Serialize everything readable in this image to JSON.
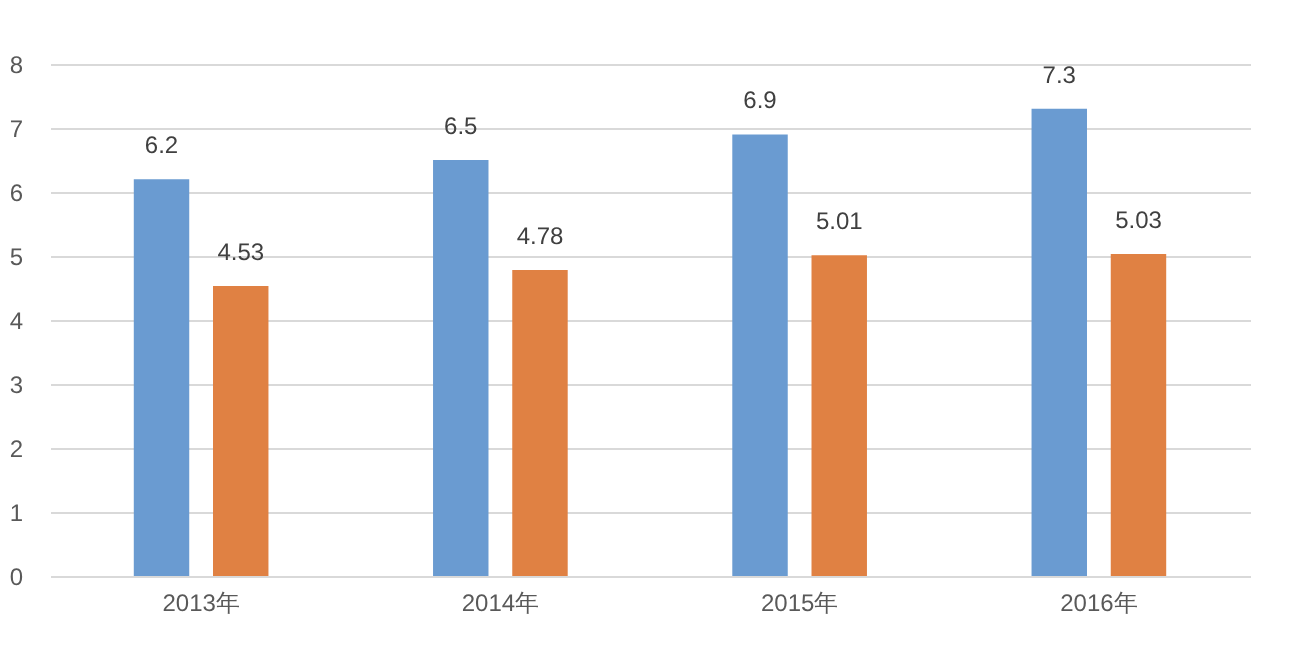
{
  "chart_data": {
    "type": "bar",
    "categories": [
      "2013年",
      "2014年",
      "2015年",
      "2016年"
    ],
    "series": [
      {
        "color": "#6a9bd1",
        "values": [
          6.2,
          6.5,
          6.9,
          7.3
        ]
      },
      {
        "color": "#e08143",
        "values": [
          4.53,
          4.78,
          5.01,
          5.03
        ]
      }
    ],
    "ylim": [
      0,
      8
    ],
    "yticks": [
      0,
      1,
      2,
      3,
      4,
      5,
      6,
      7,
      8
    ],
    "grid": "y",
    "data_labels": true
  }
}
